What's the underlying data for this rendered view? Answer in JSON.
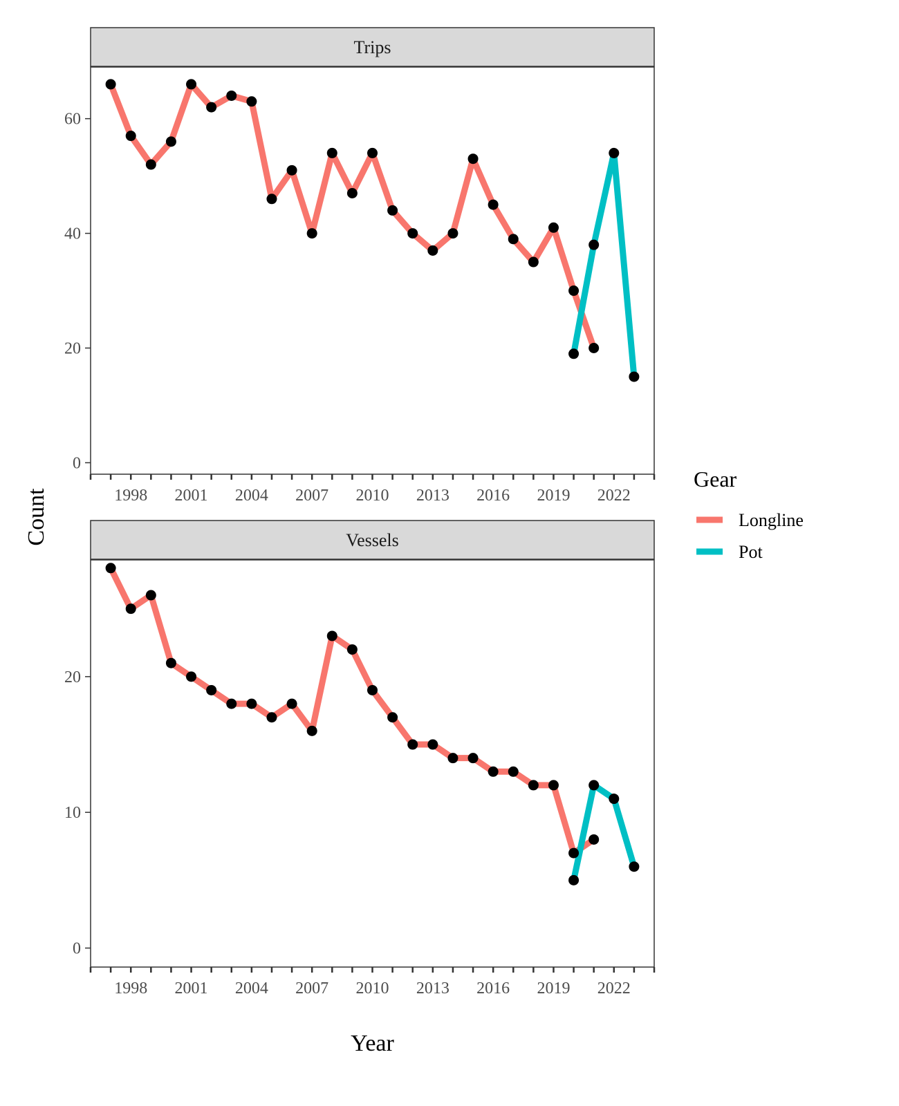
{
  "chart_data": {
    "type": "line",
    "xlabel": "Year",
    "ylabel": "Count",
    "x_ticks": [
      1998,
      2001,
      2004,
      2007,
      2010,
      2013,
      2016,
      2019,
      2022
    ],
    "xlim": [
      1996,
      2024
    ],
    "legend": {
      "title": "Gear",
      "position": "right",
      "entries": [
        {
          "name": "Longline",
          "color": "#F8766D"
        },
        {
          "name": "Pot",
          "color": "#00BFC4"
        }
      ]
    },
    "panels": [
      {
        "title": "Trips",
        "ylim": [
          -2,
          69
        ],
        "y_ticks": [
          0,
          20,
          40,
          60
        ],
        "series": [
          {
            "name": "Longline",
            "color": "#F8766D",
            "x": [
              1997,
              1998,
              1999,
              2000,
              2001,
              2002,
              2003,
              2004,
              2005,
              2006,
              2007,
              2008,
              2009,
              2010,
              2011,
              2012,
              2013,
              2014,
              2015,
              2016,
              2017,
              2018,
              2019,
              2020,
              2021
            ],
            "values": [
              66,
              57,
              52,
              56,
              66,
              62,
              64,
              63,
              46,
              51,
              40,
              54,
              47,
              54,
              44,
              40,
              37,
              40,
              53,
              45,
              39,
              35,
              41,
              30,
              20
            ]
          },
          {
            "name": "Pot",
            "color": "#00BFC4",
            "x": [
              2020,
              2021,
              2022,
              2023
            ],
            "values": [
              19,
              38,
              54,
              15
            ]
          }
        ]
      },
      {
        "title": "Vessels",
        "ylim": [
          -1.4,
          28.6
        ],
        "y_ticks": [
          0,
          10,
          20
        ],
        "series": [
          {
            "name": "Longline",
            "color": "#F8766D",
            "x": [
              1997,
              1998,
              1999,
              2000,
              2001,
              2002,
              2003,
              2004,
              2005,
              2006,
              2007,
              2008,
              2009,
              2010,
              2011,
              2012,
              2013,
              2014,
              2015,
              2016,
              2017,
              2018,
              2019,
              2020,
              2021
            ],
            "values": [
              28,
              25,
              26,
              21,
              20,
              19,
              18,
              18,
              17,
              18,
              16,
              23,
              22,
              19,
              17,
              15,
              15,
              14,
              14,
              13,
              13,
              12,
              12,
              7,
              8
            ]
          },
          {
            "name": "Pot",
            "color": "#00BFC4",
            "x": [
              2020,
              2021,
              2022,
              2023
            ],
            "values": [
              5,
              12,
              11,
              6
            ]
          }
        ]
      }
    ]
  }
}
